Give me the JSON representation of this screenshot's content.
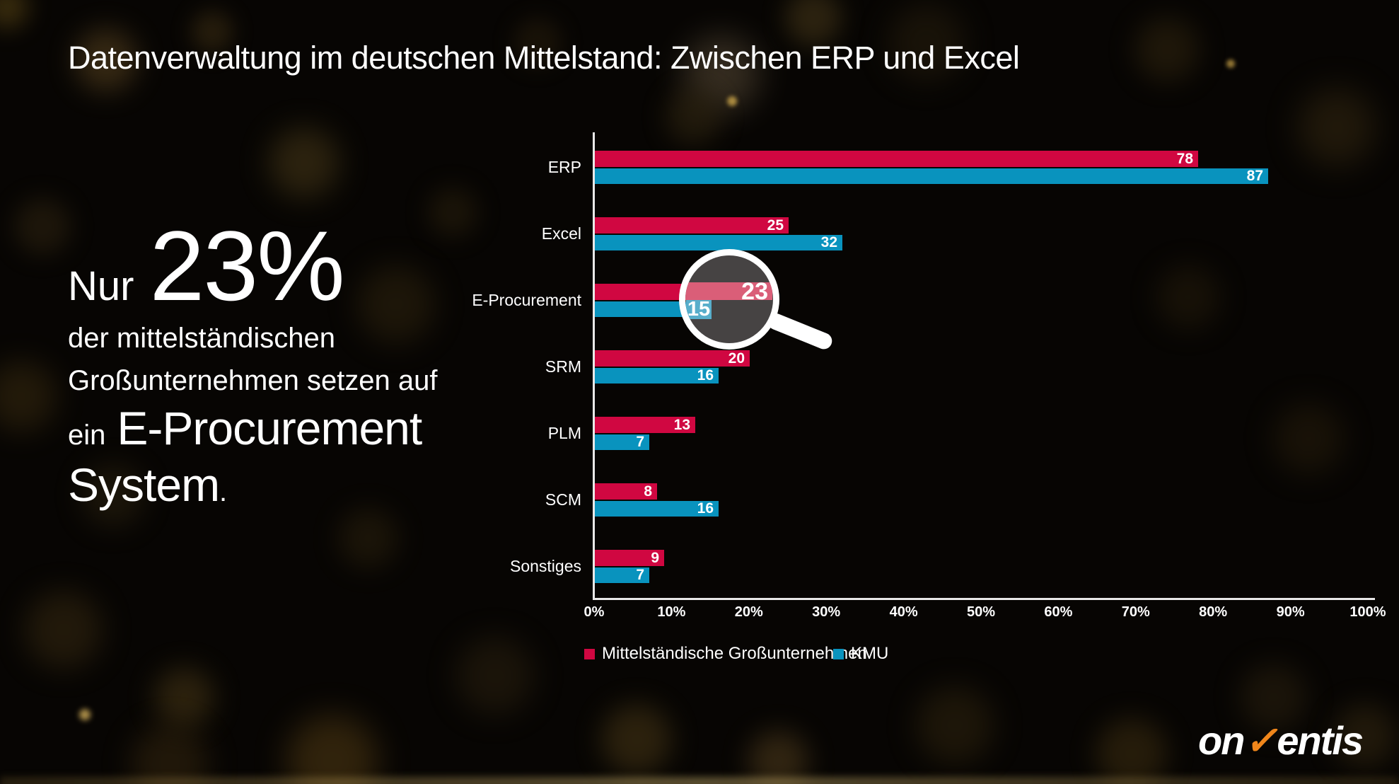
{
  "title": "Datenverwaltung im deutschen Mittelstand: Zwischen ERP und Excel",
  "callout": {
    "prefix": "Nur",
    "big_number": "23%",
    "line2": "der mittelständischen",
    "line3": "Großunternehmen setzen auf",
    "line4_small": "ein",
    "line4_big": "E-Procurement",
    "line5_big": "System",
    "line5_period": "."
  },
  "chart_data": {
    "type": "bar",
    "orientation": "horizontal",
    "categories": [
      "ERP",
      "Excel",
      "E-Procurement",
      "SRM",
      "PLM",
      "SCM",
      "Sonstiges"
    ],
    "series": [
      {
        "name": "Mittelständische Großunternehmen",
        "color": "#D00741",
        "values": [
          78,
          25,
          23,
          20,
          13,
          8,
          9
        ]
      },
      {
        "name": "KMU",
        "color": "#0993BE",
        "values": [
          87,
          32,
          15,
          16,
          7,
          16,
          7
        ]
      }
    ],
    "x_ticks": [
      "0%",
      "10%",
      "20%",
      "30%",
      "40%",
      "50%",
      "60%",
      "70%",
      "80%",
      "90%",
      "100%"
    ],
    "xlim": [
      0,
      100
    ],
    "grid": false,
    "value_labels": "inside-end",
    "legend_position": "bottom",
    "highlight": {
      "category": "E-Procurement",
      "style": "magnifier",
      "magnifier_values": {
        "grossunternehmen": "23",
        "kmu": "15"
      },
      "highlight_colors": {
        "red_light": "#DA5E78",
        "blue_light": "#58AECB",
        "lens_fill": "#464343"
      }
    }
  },
  "legend": {
    "items": [
      {
        "label": "Mittelständische Großunternehmen",
        "color": "#D00741"
      },
      {
        "label": "KMU",
        "color": "#0993BE"
      }
    ]
  },
  "logo": {
    "part1": "on",
    "check_symbol": "✓",
    "part2": "entis",
    "check_color": "#F0861B"
  },
  "colors": {
    "background": "#070503",
    "text": "#FFFFFF",
    "axis": "#E8E8E8",
    "series_red": "#D00741",
    "series_blue": "#0993BE"
  }
}
